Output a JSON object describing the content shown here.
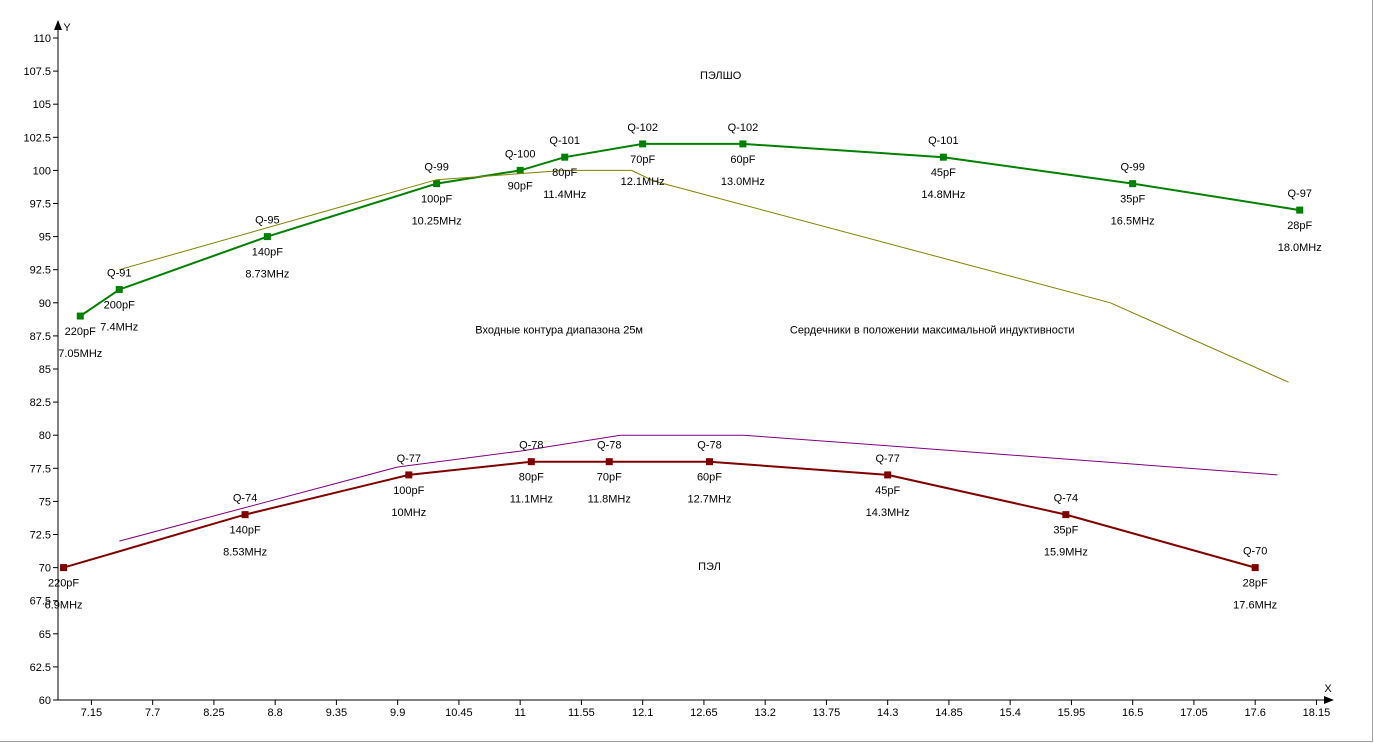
{
  "chart_data": {
    "type": "line",
    "xlabel": "X",
    "ylabel": "Y",
    "xlim": [
      6.85,
      18.2
    ],
    "ylim": [
      60,
      110
    ],
    "x_ticks": [
      "7.15",
      "7.7",
      "8.25",
      "8.8",
      "9.35",
      "9.9",
      "10.45",
      "11",
      "11.55",
      "12.1",
      "12.65",
      "13.2",
      "13.75",
      "14.3",
      "14.85",
      "15.4",
      "15.95",
      "16.5",
      "17.05",
      "17.6",
      "18.15"
    ],
    "y_ticks": [
      "60",
      "62.5",
      "65",
      "67.5",
      "70",
      "72.5",
      "75",
      "77.5",
      "80",
      "82.5",
      "85",
      "87.5",
      "90",
      "92.5",
      "95",
      "97.5",
      "100",
      "102.5",
      "105",
      "107.5",
      "110"
    ],
    "annotations": [
      {
        "text": "ПЭЛШО",
        "x": 12.8,
        "y": 106.9
      },
      {
        "text": "Входные  контура  диапазона  25м",
        "x": 11.35,
        "y": 87.7
      },
      {
        "text": "Сердечники  в положении  максимальной  индуктивности",
        "x": 14.7,
        "y": 87.7
      },
      {
        "text": "ПЭЛ",
        "x": 12.7,
        "y": 69.8
      }
    ],
    "series": [
      {
        "color": "#008000",
        "marker": true,
        "points": [
          {
            "x": 7.05,
            "y": 89,
            "labels": [
              "220pF",
              "7.05MHz"
            ],
            "pos": "below"
          },
          {
            "x": 7.4,
            "y": 91,
            "labels": [
              "Q-91",
              "200pF",
              "7.4MHz"
            ],
            "pos": "around"
          },
          {
            "x": 8.73,
            "y": 95,
            "labels": [
              "Q-95",
              "140pF",
              "8.73MHz"
            ],
            "pos": "around"
          },
          {
            "x": 10.25,
            "y": 99,
            "labels": [
              "Q-99",
              "100pF",
              "10.25MHz"
            ],
            "pos": "around"
          },
          {
            "x": 11.0,
            "y": 100,
            "labels": [
              "Q-100",
              "90pF"
            ],
            "pos": "around"
          },
          {
            "x": 11.4,
            "y": 101,
            "labels": [
              "Q-101",
              "80pF",
              "11.4MHz"
            ],
            "pos": "around"
          },
          {
            "x": 12.1,
            "y": 102,
            "labels": [
              "Q-102",
              "70pF",
              "12.1MHz"
            ],
            "pos": "around"
          },
          {
            "x": 13.0,
            "y": 102,
            "labels": [
              "Q-102",
              "60pF",
              "13.0MHz"
            ],
            "pos": "around"
          },
          {
            "x": 14.8,
            "y": 101,
            "labels": [
              "Q-101",
              "45pF",
              "14.8MHz"
            ],
            "pos": "around"
          },
          {
            "x": 16.5,
            "y": 99,
            "labels": [
              "Q-99",
              "35pF",
              "16.5MHz"
            ],
            "pos": "around"
          },
          {
            "x": 18.0,
            "y": 97,
            "labels": [
              "Q-97",
              "28pF",
              "18.0MHz"
            ],
            "pos": "around"
          }
        ]
      },
      {
        "color": "#800000",
        "marker": true,
        "points": [
          {
            "x": 6.9,
            "y": 70,
            "labels": [
              "220pF",
              "6.9MHz"
            ],
            "pos": "below"
          },
          {
            "x": 8.53,
            "y": 74,
            "labels": [
              "Q-74",
              "140pF",
              "8.53MHz"
            ],
            "pos": "around"
          },
          {
            "x": 10.0,
            "y": 77,
            "labels": [
              "Q-77",
              "100pF",
              "10MHz"
            ],
            "pos": "around"
          },
          {
            "x": 11.1,
            "y": 78,
            "labels": [
              "Q-78",
              "80pF",
              "11.1MHz"
            ],
            "pos": "around"
          },
          {
            "x": 11.8,
            "y": 78,
            "labels": [
              "Q-78",
              "70pF",
              "11.8MHz"
            ],
            "pos": "around"
          },
          {
            "x": 12.7,
            "y": 78,
            "labels": [
              "Q-78",
              "60pF",
              "12.7MHz"
            ],
            "pos": "around"
          },
          {
            "x": 14.3,
            "y": 77,
            "labels": [
              "Q-77",
              "45pF",
              "14.3MHz"
            ],
            "pos": "around"
          },
          {
            "x": 15.9,
            "y": 74,
            "labels": [
              "Q-74",
              "35pF",
              "15.9MHz"
            ],
            "pos": "around"
          },
          {
            "x": 17.6,
            "y": 70,
            "labels": [
              "Q-70",
              "28pF",
              "17.6MHz"
            ],
            "pos": "around"
          }
        ]
      },
      {
        "color": "#808000",
        "marker": false,
        "points": [
          {
            "x": 7.4,
            "y": 92.5
          },
          {
            "x": 10.25,
            "y": 99.3
          },
          {
            "x": 11.4,
            "y": 100
          },
          {
            "x": 12.0,
            "y": 100
          },
          {
            "x": 12.2,
            "y": 99.2
          },
          {
            "x": 16.3,
            "y": 90
          },
          {
            "x": 17.9,
            "y": 84
          }
        ]
      },
      {
        "color": "#800080",
        "marker": false,
        "points": [
          {
            "x": 7.4,
            "y": 72
          },
          {
            "x": 9.9,
            "y": 77.6
          },
          {
            "x": 11.0,
            "y": 78.8
          },
          {
            "x": 11.9,
            "y": 80
          },
          {
            "x": 13.0,
            "y": 80
          },
          {
            "x": 14.3,
            "y": 79.2
          },
          {
            "x": 17.8,
            "y": 77
          }
        ]
      }
    ]
  }
}
